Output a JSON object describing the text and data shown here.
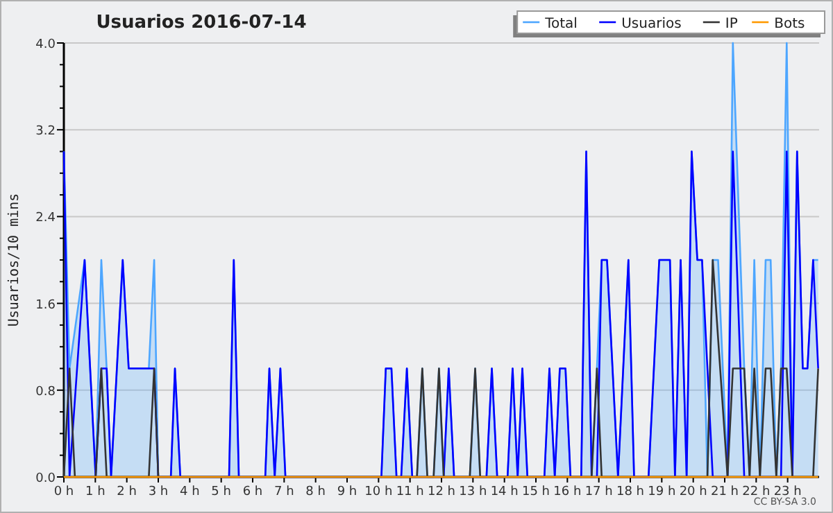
{
  "chart_data": {
    "type": "line",
    "title": "Usuarios  2016-07-14",
    "ylabel": "Usuarios/10 mins",
    "annotations": [
      "CC BY-SA 3.0"
    ],
    "xlim": [
      0,
      24
    ],
    "xticks": [
      {
        "value": 0,
        "label": "0 h"
      },
      {
        "value": 1,
        "label": "1 h"
      },
      {
        "value": 2,
        "label": "2 h"
      },
      {
        "value": 3,
        "label": "3 h"
      },
      {
        "value": 4,
        "label": "4 h"
      },
      {
        "value": 5,
        "label": "5 h"
      },
      {
        "value": 6,
        "label": "6 h"
      },
      {
        "value": 7,
        "label": "7 h"
      },
      {
        "value": 8,
        "label": "8 h"
      },
      {
        "value": 9,
        "label": "9 h"
      },
      {
        "value": 10,
        "label": "10 h"
      },
      {
        "value": 11,
        "label": "11 h"
      },
      {
        "value": 12,
        "label": "12 h"
      },
      {
        "value": 13,
        "label": "13 h"
      },
      {
        "value": 14,
        "label": "14 h"
      },
      {
        "value": 15,
        "label": "15 h"
      },
      {
        "value": 16,
        "label": "16 h"
      },
      {
        "value": 17,
        "label": "17 h"
      },
      {
        "value": 18,
        "label": "18 h"
      },
      {
        "value": 19,
        "label": "19 h"
      },
      {
        "value": 20,
        "label": "20 h"
      },
      {
        "value": 21,
        "label": "21 h"
      },
      {
        "value": 22,
        "label": "22 h"
      },
      {
        "value": 23,
        "label": "23 h"
      }
    ],
    "ylim": [
      0,
      4
    ],
    "yticks": [
      {
        "value": 0,
        "label": "0.0"
      },
      {
        "value": 0.2,
        "label": null
      },
      {
        "value": 0.4,
        "label": null
      },
      {
        "value": 0.6,
        "label": null
      },
      {
        "value": 0.8,
        "label": "0.8"
      },
      {
        "value": 1,
        "label": null
      },
      {
        "value": 1.2,
        "label": null
      },
      {
        "value": 1.4,
        "label": null
      },
      {
        "value": 1.6,
        "label": "1.6"
      },
      {
        "value": 1.8,
        "label": null
      },
      {
        "value": 2,
        "label": null
      },
      {
        "value": 2.2,
        "label": null
      },
      {
        "value": 2.4,
        "label": "2.4"
      },
      {
        "value": 2.6,
        "label": null
      },
      {
        "value": 2.8,
        "label": null
      },
      {
        "value": 3,
        "label": null
      },
      {
        "value": 3.2,
        "label": "3.2"
      },
      {
        "value": 3.4,
        "label": null
      },
      {
        "value": 3.6,
        "label": null
      },
      {
        "value": 3.8,
        "label": null
      },
      {
        "value": 4,
        "label": "4.0"
      }
    ],
    "grid": "y",
    "legend": "top right",
    "series": [
      {
        "name": "Total",
        "type": "area",
        "color": "#4da6ff",
        "x": [
          0,
          0.18,
          0.66,
          1.01,
          1.19,
          1.36,
          1.5,
          1.87,
          2.06,
          2.7,
          2.87,
          3.0,
          3.4,
          3.53,
          3.7,
          5.25,
          5.4,
          5.56,
          6.4,
          6.53,
          6.7,
          6.88,
          7.04,
          10.09,
          10.23,
          10.41,
          10.57,
          10.72,
          10.9,
          11.07,
          11.22,
          11.39,
          11.55,
          11.75,
          11.92,
          12.07,
          12.23,
          12.4,
          12.9,
          13.07,
          13.23,
          13.43,
          13.6,
          13.77,
          14.1,
          14.26,
          14.42,
          14.57,
          14.73,
          15.27,
          15.43,
          15.6,
          15.76,
          15.94,
          16.1,
          16.44,
          16.6,
          16.77,
          16.94,
          17.09,
          17.26,
          17.61,
          17.94,
          18.12,
          18.58,
          18.92,
          19.26,
          19.42,
          19.6,
          19.79,
          19.95,
          20.13,
          20.28,
          20.45,
          20.62,
          20.79,
          21.09,
          21.26,
          21.62,
          21.79,
          21.94,
          22.12,
          22.3,
          22.46,
          22.64,
          22.79,
          22.97,
          23.15,
          23.3,
          23.48,
          23.63,
          23.81,
          23.97
        ],
        "values": [
          3,
          1,
          2,
          0,
          2,
          1,
          0,
          2,
          1,
          1,
          2,
          0,
          0,
          1,
          0,
          0,
          2,
          0,
          0,
          1,
          0,
          1,
          0,
          0,
          1,
          1,
          0,
          0,
          1,
          0,
          0,
          1,
          0,
          0,
          1,
          0,
          1,
          0,
          0,
          1,
          0,
          0,
          1,
          0,
          0,
          1,
          0,
          1,
          0,
          0,
          1,
          0,
          1,
          1,
          0,
          0,
          3,
          0,
          1,
          2,
          2,
          0,
          2,
          0,
          0,
          2,
          2,
          0,
          2,
          0,
          3,
          2,
          2,
          0,
          2,
          2,
          0,
          4,
          1,
          0,
          2,
          0,
          2,
          2,
          0,
          1,
          4,
          0,
          3,
          1,
          1,
          2,
          2
        ]
      },
      {
        "name": "Usuarios",
        "color": "#0000ff",
        "x": [
          0,
          0.18,
          0.66,
          1.01,
          1.19,
          1.36,
          1.5,
          1.87,
          2.06,
          2.87,
          3.0,
          3.4,
          3.53,
          3.7,
          5.25,
          5.4,
          5.56,
          6.4,
          6.53,
          6.7,
          6.88,
          7.04,
          10.09,
          10.23,
          10.41,
          10.57,
          10.72,
          10.9,
          11.07,
          12.07,
          12.23,
          12.4,
          13.43,
          13.6,
          13.77,
          14.1,
          14.26,
          14.42,
          14.57,
          14.73,
          15.27,
          15.43,
          15.6,
          15.76,
          15.94,
          16.1,
          16.44,
          16.6,
          16.77,
          16.94,
          17.09,
          17.26,
          17.61,
          17.94,
          18.12,
          18.58,
          18.92,
          19.26,
          19.42,
          19.6,
          19.79,
          19.95,
          20.13,
          20.28,
          20.62,
          21.09,
          21.26,
          21.62,
          22.79,
          22.97,
          23.15,
          23.3,
          23.48,
          23.63,
          23.81,
          23.97
        ],
        "values": [
          3,
          0,
          2,
          0,
          1,
          1,
          0,
          2,
          1,
          1,
          0,
          0,
          1,
          0,
          0,
          2,
          0,
          0,
          1,
          0,
          1,
          0,
          0,
          1,
          1,
          0,
          0,
          1,
          0,
          0,
          1,
          0,
          0,
          1,
          0,
          0,
          1,
          0,
          1,
          0,
          0,
          1,
          0,
          1,
          1,
          0,
          0,
          3,
          0,
          0,
          2,
          2,
          0,
          2,
          0,
          0,
          2,
          2,
          0,
          2,
          0,
          3,
          2,
          2,
          0,
          0,
          3,
          0,
          0,
          3,
          0,
          3,
          1,
          1,
          2,
          1
        ]
      },
      {
        "name": "IP",
        "color": "#333333",
        "x": [
          0,
          0.18,
          0.35,
          1.01,
          1.19,
          1.36,
          2.7,
          2.87,
          3.0,
          11.22,
          11.39,
          11.55,
          11.75,
          11.92,
          12.07,
          12.9,
          13.07,
          13.23,
          16.77,
          16.94,
          17.09,
          20.45,
          20.62,
          21.09,
          21.26,
          21.62,
          21.79,
          21.94,
          22.12,
          22.3,
          22.46,
          22.64,
          22.79,
          22.97,
          23.15,
          23.81,
          23.97
        ],
        "values": [
          0,
          1,
          0,
          0,
          1,
          0,
          0,
          1,
          0,
          0,
          1,
          0,
          0,
          1,
          0,
          0,
          1,
          0,
          0,
          1,
          0,
          0,
          2,
          0,
          1,
          1,
          0,
          1,
          0,
          1,
          1,
          0,
          1,
          1,
          0,
          0,
          1
        ]
      },
      {
        "name": "Bots",
        "color": "#ff9900",
        "x": [
          0,
          23.97
        ],
        "values": [
          0,
          0
        ]
      }
    ]
  }
}
